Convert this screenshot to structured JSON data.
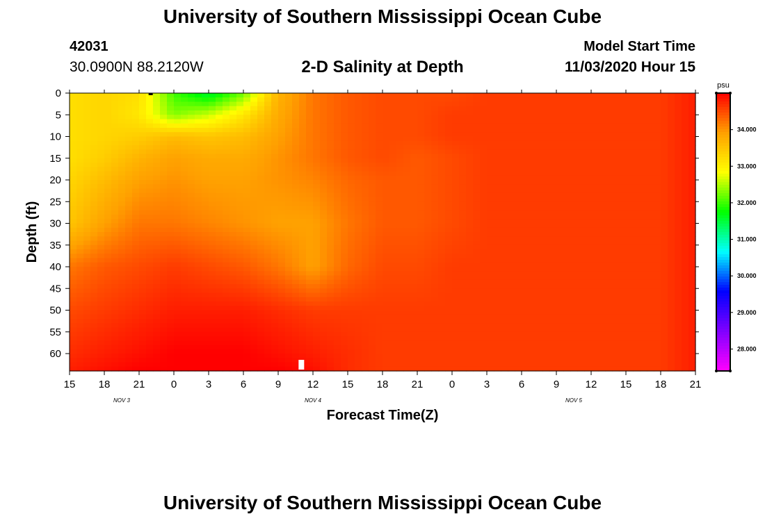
{
  "header": {
    "title": "University of Southern Mississippi Ocean Cube",
    "station_id": "42031",
    "station_coords": "30.0900N 88.2120W",
    "plot_title": "2-D Salinity at Depth",
    "start_label": "Model Start Time",
    "start_value": "11/03/2020 Hour 15"
  },
  "footer": {
    "title": "University of Southern Mississippi Ocean Cube"
  },
  "colors": {
    "palette": [
      "#ff00ff",
      "#8000ff",
      "#0000ff",
      "#00ffff",
      "#00ff00",
      "#ffff00",
      "#ffa000",
      "#ff0000"
    ],
    "frame": "#000000",
    "marker": "#ffffff"
  },
  "chart_data": {
    "type": "heatmap",
    "title": "2-D Salinity at Depth",
    "xlabel": "Forecast Time(Z)",
    "ylabel": "Depth (ft)",
    "x_ticks": [
      "15",
      "18",
      "21",
      "0",
      "3",
      "6",
      "9",
      "12",
      "15",
      "18",
      "21",
      "0",
      "3",
      "6",
      "9",
      "12",
      "15",
      "18",
      "21"
    ],
    "day_labels": [
      {
        "label": "NOV 3",
        "tick_index": 1.5
      },
      {
        "label": "NOV 4",
        "tick_index": 7
      },
      {
        "label": "NOV 5",
        "tick_index": 14.5
      }
    ],
    "y_ticks": [
      "0",
      "5",
      "10",
      "15",
      "20",
      "25",
      "30",
      "35",
      "40",
      "45",
      "50",
      "55",
      "60"
    ],
    "ylim": [
      0,
      64
    ],
    "x_range_hours": [
      0,
      54
    ],
    "colorbar": {
      "unit": "psu",
      "range": [
        27.4,
        35.0
      ],
      "ticks": [
        "34.000",
        "33.000",
        "32.000",
        "31.000",
        "30.000",
        "29.000",
        "28.000"
      ],
      "tick_values": [
        34,
        33,
        32,
        31,
        30,
        29,
        28
      ]
    },
    "surface_marker_hour": 7,
    "bottom_marker_hour": 20,
    "grid_hours": [
      0,
      3,
      6,
      9,
      12,
      15,
      18,
      21,
      24,
      27,
      30,
      33,
      36,
      39,
      42,
      45,
      48,
      51,
      54
    ],
    "grid_depths": [
      0,
      5,
      10,
      15,
      20,
      30,
      40,
      50,
      60,
      64
    ],
    "salinity": [
      [
        33.2,
        33.3,
        33.2,
        32.0,
        31.5,
        32.2,
        33.7,
        34.2,
        34.4,
        34.5,
        34.5,
        34.5,
        34.6,
        34.6,
        34.6,
        34.6,
        34.6,
        34.6,
        34.8
      ],
      [
        33.2,
        33.3,
        33.1,
        32.3,
        32.6,
        33.1,
        33.8,
        34.2,
        34.4,
        34.5,
        34.5,
        34.6,
        34.6,
        34.6,
        34.6,
        34.6,
        34.6,
        34.6,
        34.8
      ],
      [
        33.2,
        33.3,
        33.4,
        33.6,
        33.5,
        33.6,
        33.9,
        34.2,
        34.4,
        34.5,
        34.5,
        34.6,
        34.6,
        34.6,
        34.6,
        34.6,
        34.6,
        34.6,
        34.8
      ],
      [
        33.2,
        33.4,
        33.7,
        33.9,
        33.8,
        33.8,
        34.0,
        34.2,
        34.4,
        34.5,
        34.4,
        34.5,
        34.6,
        34.6,
        34.6,
        34.6,
        34.6,
        34.6,
        34.8
      ],
      [
        33.3,
        33.6,
        33.9,
        34.0,
        33.9,
        33.9,
        34.0,
        34.1,
        34.3,
        34.4,
        34.4,
        34.5,
        34.6,
        34.6,
        34.6,
        34.6,
        34.6,
        34.6,
        34.8
      ],
      [
        33.5,
        33.9,
        34.2,
        34.2,
        34.1,
        34.0,
        33.9,
        33.9,
        34.2,
        34.4,
        34.4,
        34.5,
        34.6,
        34.6,
        34.6,
        34.6,
        34.6,
        34.6,
        34.8
      ],
      [
        34.2,
        34.4,
        34.5,
        34.6,
        34.5,
        34.4,
        34.2,
        33.9,
        34.3,
        34.5,
        34.5,
        34.6,
        34.6,
        34.6,
        34.6,
        34.6,
        34.6,
        34.6,
        34.8
      ],
      [
        34.5,
        34.6,
        34.7,
        34.8,
        34.8,
        34.8,
        34.7,
        34.6,
        34.6,
        34.6,
        34.6,
        34.6,
        34.6,
        34.6,
        34.6,
        34.6,
        34.6,
        34.6,
        34.8
      ],
      [
        34.7,
        34.8,
        34.9,
        35.0,
        35.0,
        35.0,
        34.9,
        34.8,
        34.7,
        34.6,
        34.6,
        34.6,
        34.6,
        34.6,
        34.6,
        34.6,
        34.6,
        34.6,
        34.8
      ],
      [
        34.8,
        34.9,
        35.0,
        35.0,
        35.0,
        35.0,
        35.0,
        34.9,
        34.7,
        34.6,
        34.6,
        34.6,
        34.6,
        34.6,
        34.6,
        34.6,
        34.6,
        34.6,
        34.8
      ]
    ]
  }
}
